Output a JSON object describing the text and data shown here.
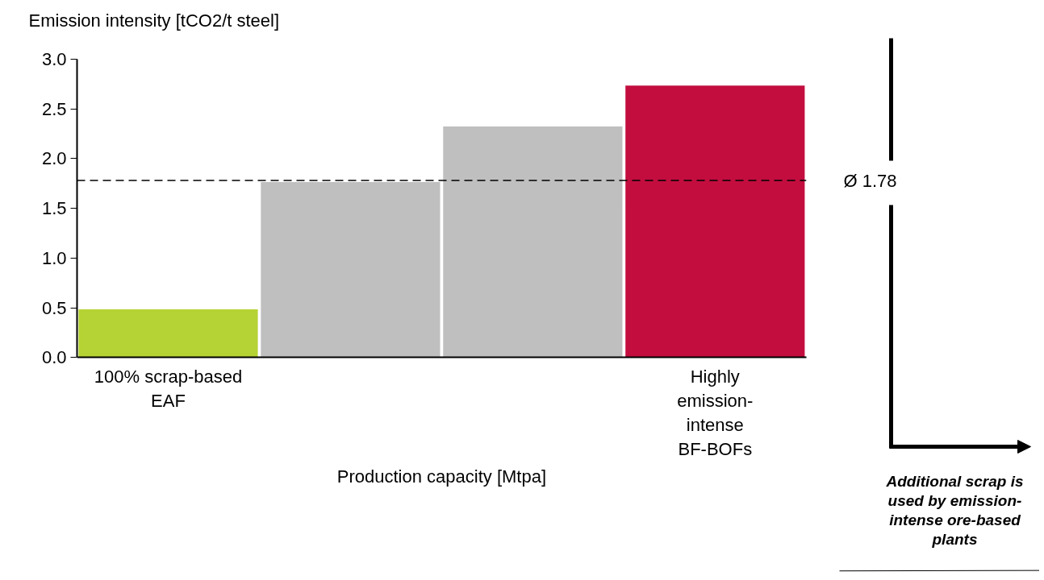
{
  "chart_data": {
    "type": "bar",
    "ylabel": "Emission intensity [tCO2/t steel]",
    "xlabel": "Production capacity [Mtpa]",
    "categories": [
      "100% scrap-based\nEAF",
      null,
      null,
      "Highly\nemission-\nintense\nBF-BOFs"
    ],
    "values": [
      0.49,
      1.77,
      2.33,
      2.74
    ],
    "colors": [
      "#b5d334",
      "#bfbfbf",
      "#bfbfbf",
      "#c30d3f"
    ],
    "ylim": [
      0,
      3
    ],
    "yticks": [
      {
        "value": 0,
        "label": "0.0"
      },
      {
        "value": 0.5,
        "label": "0.5"
      },
      {
        "value": 1,
        "label": "1.0"
      },
      {
        "value": 1.5,
        "label": "1.5"
      },
      {
        "value": 2,
        "label": "2.0"
      },
      {
        "value": 2.5,
        "label": "2.5"
      },
      {
        "value": 3,
        "label": "3.0"
      }
    ],
    "ref_lines": [
      {
        "axis": "y",
        "value": 1.78,
        "label": "Ø 1.78",
        "color": "#000000",
        "line_style": "dashed"
      }
    ],
    "annotations": [
      "Additional scrap is\nused by emission-\nintense ore-based\nplants"
    ],
    "grid": false
  }
}
